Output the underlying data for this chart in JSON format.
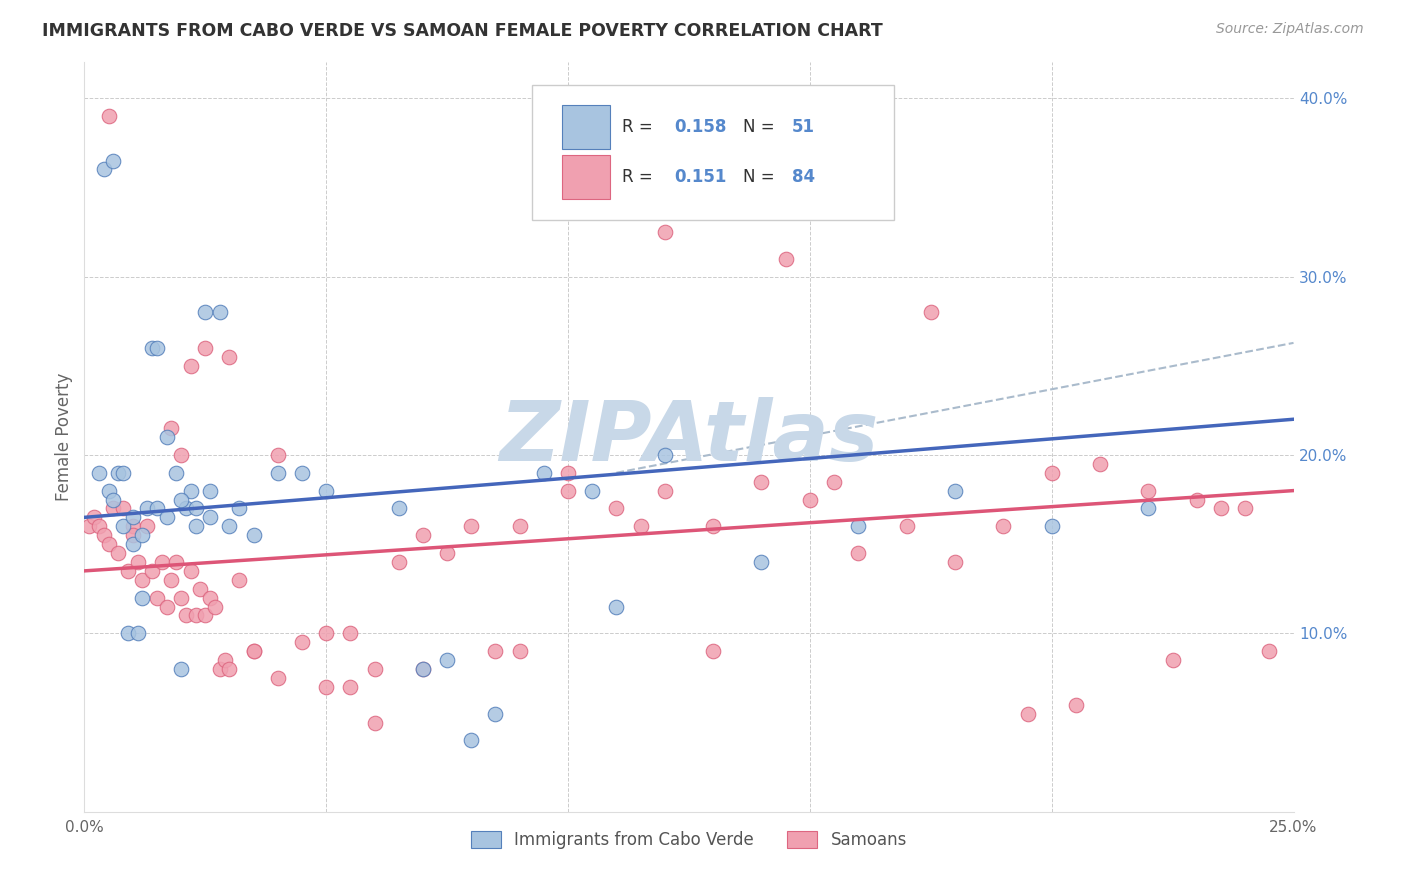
{
  "title": "IMMIGRANTS FROM CABO VERDE VS SAMOAN FEMALE POVERTY CORRELATION CHART",
  "source": "Source: ZipAtlas.com",
  "ylabel_left": "Female Poverty",
  "legend_label_1": "Immigrants from Cabo Verde",
  "legend_label_2": "Samoans",
  "r1": "0.158",
  "n1": "51",
  "r2": "0.151",
  "n2": "84",
  "color_blue_fill": "#A8C4E0",
  "color_blue_edge": "#5580BB",
  "color_pink_fill": "#F0A0B0",
  "color_pink_edge": "#DD6680",
  "color_blue_line": "#4466BB",
  "color_pink_line": "#DD5577",
  "color_dashed": "#AABBCC",
  "color_grid": "#CCCCCC",
  "watermark": "ZIPAtlas",
  "watermark_color": "#C8D8E8",
  "xlim": [
    0,
    25
  ],
  "ylim": [
    0,
    42
  ],
  "x_ticks": [
    0,
    5,
    10,
    15,
    20,
    25
  ],
  "x_tick_labels": [
    "0.0%",
    "",
    "",
    "",
    "",
    "25.0%"
  ],
  "y_ticks": [
    0,
    10,
    20,
    30,
    40
  ],
  "y_tick_labels_right": [
    "",
    "10.0%",
    "20.0%",
    "30.0%",
    "40.0%"
  ],
  "blue_x": [
    0.3,
    0.5,
    0.6,
    0.7,
    0.8,
    0.9,
    1.0,
    1.1,
    1.2,
    1.3,
    1.4,
    1.5,
    1.7,
    1.9,
    2.0,
    2.1,
    2.2,
    2.3,
    2.5,
    2.6,
    2.8,
    3.0,
    3.5,
    4.5,
    6.5,
    7.5,
    8.0,
    9.5,
    10.5,
    12.0,
    14.0,
    16.0,
    18.0,
    20.0,
    22.0,
    0.4,
    0.6,
    0.8,
    1.0,
    1.2,
    1.5,
    1.7,
    2.0,
    2.3,
    2.6,
    3.2,
    4.0,
    5.0,
    7.0,
    8.5,
    11.0
  ],
  "blue_y": [
    19.0,
    18.0,
    17.5,
    19.0,
    16.0,
    10.0,
    15.0,
    10.0,
    12.0,
    17.0,
    26.0,
    26.0,
    21.0,
    19.0,
    8.0,
    17.0,
    18.0,
    17.0,
    28.0,
    18.0,
    28.0,
    16.0,
    15.5,
    19.0,
    17.0,
    8.5,
    4.0,
    19.0,
    18.0,
    20.0,
    14.0,
    16.0,
    18.0,
    16.0,
    17.0,
    36.0,
    36.5,
    19.0,
    16.5,
    15.5,
    17.0,
    16.5,
    17.5,
    16.0,
    16.5,
    17.0,
    19.0,
    18.0,
    8.0,
    5.5,
    11.5
  ],
  "pink_x": [
    0.1,
    0.2,
    0.3,
    0.4,
    0.5,
    0.6,
    0.7,
    0.8,
    0.9,
    1.0,
    1.1,
    1.2,
    1.3,
    1.4,
    1.5,
    1.6,
    1.7,
    1.8,
    1.9,
    2.0,
    2.1,
    2.2,
    2.3,
    2.4,
    2.5,
    2.6,
    2.7,
    2.8,
    2.9,
    3.0,
    3.2,
    3.5,
    4.0,
    4.5,
    5.0,
    5.5,
    6.0,
    6.5,
    7.0,
    7.5,
    8.0,
    9.0,
    10.0,
    11.0,
    12.0,
    13.0,
    14.0,
    15.0,
    16.0,
    17.0,
    18.0,
    19.0,
    20.0,
    21.0,
    22.0,
    23.0,
    24.0,
    1.8,
    2.0,
    2.2,
    2.5,
    3.0,
    3.5,
    4.0,
    5.0,
    5.5,
    6.0,
    7.0,
    8.5,
    9.0,
    10.0,
    11.5,
    12.0,
    13.0,
    14.5,
    15.5,
    17.5,
    19.5,
    20.5,
    22.5,
    23.5,
    24.5,
    0.5,
    1.0
  ],
  "pink_y": [
    16.0,
    16.5,
    16.0,
    15.5,
    15.0,
    17.0,
    14.5,
    17.0,
    13.5,
    16.0,
    14.0,
    13.0,
    16.0,
    13.5,
    12.0,
    14.0,
    11.5,
    13.0,
    14.0,
    12.0,
    11.0,
    13.5,
    11.0,
    12.5,
    11.0,
    12.0,
    11.5,
    8.0,
    8.5,
    8.0,
    13.0,
    9.0,
    7.5,
    9.5,
    7.0,
    7.0,
    5.0,
    14.0,
    15.5,
    14.5,
    16.0,
    16.0,
    19.0,
    17.0,
    18.0,
    16.0,
    18.5,
    17.5,
    14.5,
    16.0,
    14.0,
    16.0,
    19.0,
    19.5,
    18.0,
    17.5,
    17.0,
    21.5,
    20.0,
    25.0,
    26.0,
    25.5,
    9.0,
    20.0,
    10.0,
    10.0,
    8.0,
    8.0,
    9.0,
    9.0,
    18.0,
    16.0,
    32.5,
    9.0,
    31.0,
    18.5,
    28.0,
    5.5,
    6.0,
    8.5,
    17.0,
    9.0,
    39.0,
    15.5
  ],
  "dashed_line_x": [
    12,
    25
  ],
  "dashed_line_y": [
    22,
    26
  ]
}
